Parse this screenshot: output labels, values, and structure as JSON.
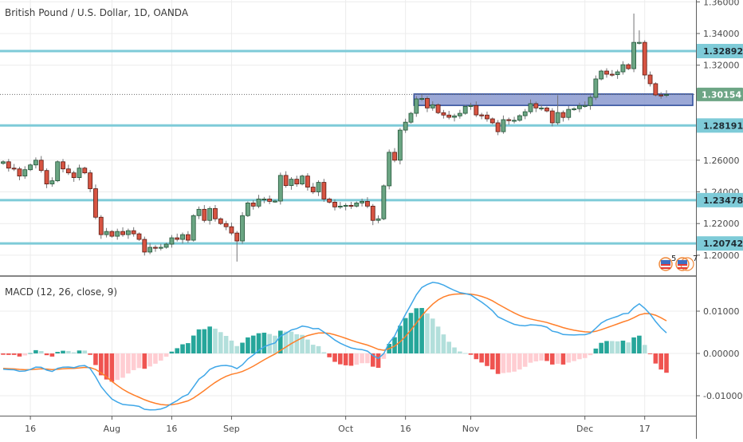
{
  "header": {
    "title": "British Pound / U.S. Dollar, 1D, OANDA"
  },
  "macd_pane": {
    "title": "MACD (12, 26, close, 9)"
  },
  "events": {
    "labels": [
      "5",
      "7"
    ]
  },
  "colors": {
    "up": "#6ba583",
    "up_border": "#225437",
    "down": "#d75442",
    "down_border": "#5b1a13",
    "wick": "#737375",
    "level_line": "#7ecbd8",
    "zone_fill": "#8a99cf",
    "zone_border": "#2c4a9a",
    "last_price": "#6da585",
    "macd_line": "#3fa7e8",
    "signal_line": "#ff7f2a",
    "hist_pos_up": "#26a69a",
    "hist_pos_down": "#b2dfdb",
    "hist_neg_down": "#ef5350",
    "hist_neg_up": "#ffcdd2"
  },
  "chart_data": [
    {
      "type": "candlestick",
      "title": "British Pound / U.S. Dollar, 1D, OANDA",
      "price_axis": {
        "ticks": [
          "1.36000",
          "1.34000",
          "1.32000",
          "1.26000",
          "1.24000",
          "1.22000",
          "1.20000"
        ],
        "tick_values": [
          1.36,
          1.34,
          1.32,
          1.26,
          1.24,
          1.22,
          1.2
        ],
        "range": [
          1.195,
          1.362
        ]
      },
      "time_axis": {
        "labels": [
          "16",
          "Aug",
          "16",
          "Sep",
          "Oct",
          "16",
          "Nov",
          "Dec",
          "17"
        ],
        "bar_index": [
          5,
          20,
          31,
          42,
          63,
          74,
          86,
          107,
          118
        ]
      },
      "closes": [
        1.259,
        1.255,
        1.2545,
        1.25,
        1.254,
        1.257,
        1.26,
        1.2535,
        1.245,
        1.247,
        1.259,
        1.2545,
        1.252,
        1.249,
        1.255,
        1.252,
        1.242,
        1.224,
        1.213,
        1.215,
        1.212,
        1.215,
        1.213,
        1.2155,
        1.2135,
        1.21,
        1.202,
        1.205,
        1.2048,
        1.205,
        1.207,
        1.211,
        1.21,
        1.213,
        1.2095,
        1.225,
        1.229,
        1.222,
        1.2295,
        1.223,
        1.22,
        1.218,
        1.214,
        1.209,
        1.225,
        1.233,
        1.231,
        1.2355,
        1.2355,
        1.234,
        1.2342,
        1.2504,
        1.244,
        1.248,
        1.245,
        1.25,
        1.243,
        1.24,
        1.246,
        1.2355,
        1.2335,
        1.2305,
        1.231,
        1.2315,
        1.231,
        1.233,
        1.234,
        1.231,
        1.222,
        1.223,
        1.2438,
        1.265,
        1.26,
        1.279,
        1.284,
        1.2896,
        1.2987,
        1.299,
        1.293,
        1.295,
        1.29,
        1.2885,
        1.2871,
        1.288,
        1.2896,
        1.294,
        1.2945,
        1.2886,
        1.2885,
        1.2861,
        1.2836,
        1.278,
        1.2856,
        1.285,
        1.2852,
        1.2881,
        1.2906,
        1.2957,
        1.293,
        1.293,
        1.2911,
        1.2836,
        1.2901,
        1.287,
        1.2921,
        1.2925,
        1.2945,
        1.2945,
        1.2997,
        1.3113,
        1.3163,
        1.3143,
        1.314,
        1.3158,
        1.3203,
        1.3178,
        1.3344,
        1.3344,
        1.3138,
        1.3083,
        1.3012,
        1.301,
        1.3015
      ],
      "first_open": 1.258,
      "wick": 0.0022,
      "high_overrides": {
        "116": 1.3526,
        "117": 1.342,
        "102": 1.301
      },
      "low_overrides": {
        "43": 1.196,
        "68": 1.219
      },
      "levels": [
        {
          "value": 1.32892,
          "label": "1.32892"
        },
        {
          "value": 1.28191,
          "label": "1.28191"
        },
        {
          "value": 1.23478,
          "label": "1.23478"
        },
        {
          "value": 1.20742,
          "label": "1.20742"
        }
      ],
      "zone": {
        "top": 1.3018,
        "bottom": 1.2946,
        "start_bar": 76
      },
      "last_price": {
        "value": 1.30154,
        "label": "1.30154"
      }
    },
    {
      "type": "macd",
      "title": "MACD (12, 26, close, 9)",
      "params": {
        "fast": 12,
        "slow": 26,
        "signal": 9,
        "source": "close"
      },
      "seed": {
        "ema_fast": 1.2595,
        "ema_slow": 1.2635,
        "signal": -0.0035
      },
      "axis": {
        "ticks": [
          "0.01000",
          "0.00000",
          "-0.01000"
        ],
        "tick_values": [
          0.01,
          0,
          -0.01
        ]
      }
    }
  ]
}
